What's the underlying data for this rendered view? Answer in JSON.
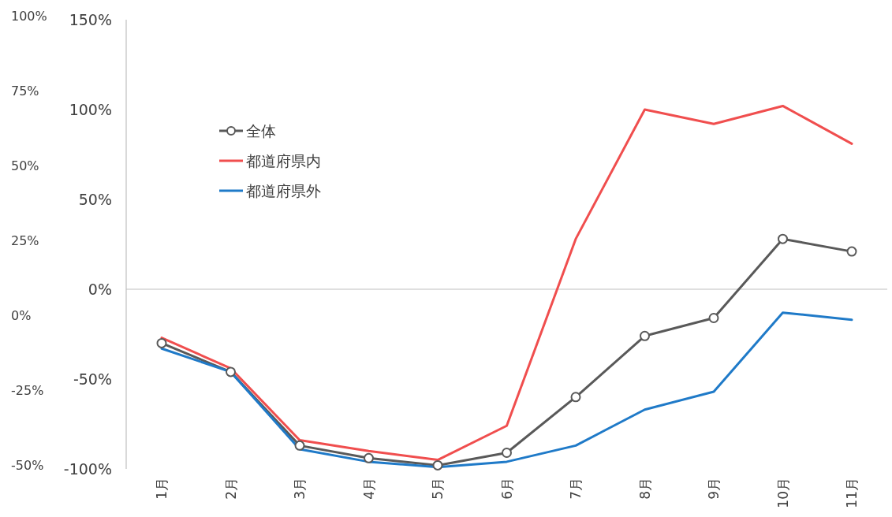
{
  "chart_data": {
    "type": "line",
    "categories": [
      "1月",
      "2月",
      "3月",
      "4月",
      "5月",
      "6月",
      "7月",
      "8月",
      "9月",
      "10月",
      "11月"
    ],
    "series": [
      {
        "name": "全体",
        "color": "#595959",
        "marker": "circle",
        "values": [
          -30,
          -46,
          -87,
          -94,
          -98,
          -91,
          -60,
          -26,
          -16,
          28,
          21
        ]
      },
      {
        "name": "都道府県内",
        "color": "#f04e4e",
        "marker": "none",
        "values": [
          -27,
          -44,
          -84,
          -90,
          -95,
          -76,
          28,
          100,
          92,
          102,
          81
        ]
      },
      {
        "name": "都道府県外",
        "color": "#1f7ac8",
        "marker": "none",
        "values": [
          -33,
          -46,
          -89,
          -96,
          -99,
          -96,
          -87,
          -67,
          -57,
          -13,
          -17
        ]
      }
    ],
    "ylim": [
      -100,
      150
    ],
    "yticks": [
      {
        "value": -100,
        "label": "-100%"
      },
      {
        "value": -50,
        "label": "-50%"
      },
      {
        "value": 0,
        "label": "0%"
      },
      {
        "value": 50,
        "label": "50%"
      },
      {
        "value": 100,
        "label": "100%"
      },
      {
        "value": 150,
        "label": "150%"
      }
    ],
    "y2lim": [
      -50,
      100
    ],
    "y2ticks": [
      {
        "value": -50,
        "label": "-50%"
      },
      {
        "value": -25,
        "label": "-25%"
      },
      {
        "value": 0,
        "label": "0%"
      },
      {
        "value": 25,
        "label": "25%"
      },
      {
        "value": 50,
        "label": "50%"
      },
      {
        "value": 75,
        "label": "75%"
      },
      {
        "value": 100,
        "label": "100%"
      }
    ],
    "legend": "top left",
    "line_style": "solid"
  }
}
